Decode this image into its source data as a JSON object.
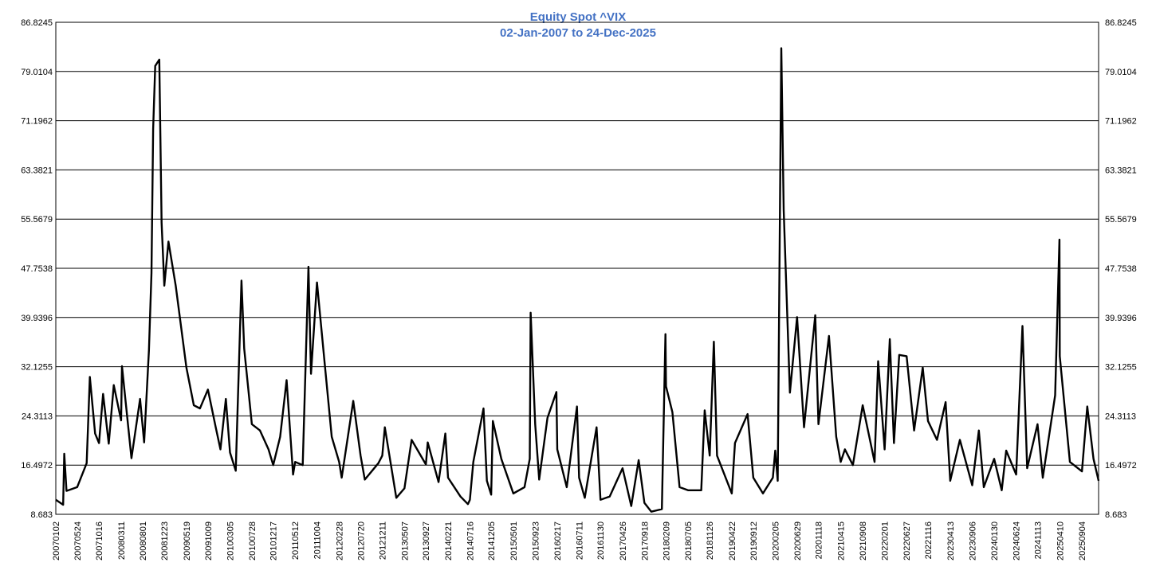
{
  "chart_data": {
    "type": "line",
    "title": "Equity Spot ^VIX",
    "subtitle": "02-Jan-2007 to 24-Dec-2025",
    "xlabel": "",
    "ylabel": "",
    "ylim": [
      8.683,
      86.8245
    ],
    "yticks": [
      "86.8245",
      "79.0104",
      "71.1962",
      "63.3821",
      "55.5679",
      "47.7538",
      "39.9396",
      "32.1255",
      "24.3113",
      "16.4972",
      "8.683"
    ],
    "xtick_labels": [
      "20070102",
      "20070524",
      "20071016",
      "20080311",
      "20080801",
      "20081223",
      "20090519",
      "20091009",
      "20100305",
      "20100728",
      "20101217",
      "20110512",
      "20111004",
      "20120228",
      "20120720",
      "20121211",
      "20130507",
      "20130927",
      "20140221",
      "20140716",
      "20141205",
      "20150501",
      "20150923",
      "20160217",
      "20160711",
      "20161130",
      "20170426",
      "20170918",
      "20180209",
      "20180705",
      "20181126",
      "20190422",
      "20190912",
      "20200205",
      "20200629",
      "20201118",
      "20210415",
      "20210908",
      "20220201",
      "20220627",
      "20221116",
      "20230413",
      "20230906",
      "20240130",
      "20240624",
      "20241113",
      "20250410",
      "20250904"
    ],
    "grid": "horizontal",
    "legend": "none",
    "line_color": "#000000",
    "series": [
      {
        "x": [
          "2007-01-02",
          "2007-02-20",
          "2007-02-27",
          "2007-03-14",
          "2007-05-24",
          "2007-07-26",
          "2007-08-16",
          "2007-09-20",
          "2007-10-16",
          "2007-11-12",
          "2007-12-20",
          "2008-01-22",
          "2008-03-11",
          "2008-03-17",
          "2008-05-19",
          "2008-07-15",
          "2008-08-11",
          "2008-09-12",
          "2008-09-29",
          "2008-10-10",
          "2008-10-24",
          "2008-11-20",
          "2008-12-05",
          "2008-12-23",
          "2009-01-20",
          "2009-03-09",
          "2009-05-19",
          "2009-07-07",
          "2009-08-17",
          "2009-10-09",
          "2009-11-30",
          "2009-12-31",
          "2010-02-05",
          "2010-03-05",
          "2010-04-12",
          "2010-05-20",
          "2010-06-07",
          "2010-07-28",
          "2010-09-20",
          "2010-11-16",
          "2010-12-17",
          "2011-02-01",
          "2011-03-16",
          "2011-04-28",
          "2011-05-12",
          "2011-07-01",
          "2011-08-08",
          "2011-08-25",
          "2011-10-04",
          "2011-11-23",
          "2012-01-10",
          "2012-02-28",
          "2012-03-16",
          "2012-06-01",
          "2012-07-20",
          "2012-08-17",
          "2012-11-15",
          "2012-12-11",
          "2012-12-28",
          "2013-03-14",
          "2013-05-07",
          "2013-06-24",
          "2013-09-27",
          "2013-10-09",
          "2013-12-20",
          "2014-02-03",
          "2014-02-21",
          "2014-05-15",
          "2014-07-03",
          "2014-07-16",
          "2014-08-08",
          "2014-10-15",
          "2014-11-06",
          "2014-12-05",
          "2014-12-16",
          "2015-02-10",
          "2015-05-01",
          "2015-07-14",
          "2015-08-18",
          "2015-08-24",
          "2015-09-23",
          "2015-10-20",
          "2015-12-14",
          "2016-02-11",
          "2016-02-17",
          "2016-04-20",
          "2016-06-27",
          "2016-07-11",
          "2016-08-18",
          "2016-11-04",
          "2016-11-30",
          "2017-01-30",
          "2017-04-26",
          "2017-06-23",
          "2017-08-11",
          "2017-09-18",
          "2017-11-03",
          "2018-01-12",
          "2018-02-05",
          "2018-02-09",
          "2018-03-23",
          "2018-05-10",
          "2018-07-05",
          "2018-10-01",
          "2018-10-24",
          "2018-11-26",
          "2018-12-24",
          "2019-01-14",
          "2019-04-22",
          "2019-05-13",
          "2019-08-05",
          "2019-09-12",
          "2019-11-15",
          "2020-01-20",
          "2020-02-05",
          "2020-02-21",
          "2020-03-16",
          "2020-04-01",
          "2020-05-12",
          "2020-06-29",
          "2020-08-14",
          "2020-10-28",
          "2020-11-18",
          "2021-01-27",
          "2021-03-16",
          "2021-04-15",
          "2021-05-13",
          "2021-07-05",
          "2021-09-08",
          "2021-11-26",
          "2021-12-20",
          "2022-02-01",
          "2022-03-07",
          "2022-04-04",
          "2022-05-09",
          "2022-06-27",
          "2022-08-16",
          "2022-10-12",
          "2022-11-16",
          "2023-01-15",
          "2023-03-13",
          "2023-04-13",
          "2023-06-16",
          "2023-09-06",
          "2023-10-20",
          "2023-11-22",
          "2024-01-30",
          "2024-03-20",
          "2024-04-19",
          "2024-06-24",
          "2024-08-05",
          "2024-09-05",
          "2024-11-13",
          "2024-12-18",
          "2025-03-10",
          "2025-04-08",
          "2025-04-10",
          "2025-06-16",
          "2025-09-04",
          "2025-10-10",
          "2025-11-20",
          "2025-12-24"
        ],
        "y": [
          11.0,
          10.2,
          18.3,
          12.4,
          13.0,
          16.8,
          30.5,
          21.5,
          20.0,
          27.8,
          19.9,
          29.2,
          23.6,
          32.2,
          17.6,
          27.0,
          20.1,
          34.7,
          47.0,
          69.9,
          79.9,
          80.9,
          55.0,
          45.0,
          52.0,
          45.0,
          32.0,
          26.0,
          25.5,
          28.5,
          22.5,
          19.0,
          27.0,
          18.5,
          15.6,
          45.8,
          35.0,
          23.0,
          22.0,
          19.0,
          16.5,
          21.0,
          30.0,
          15.0,
          17.0,
          16.5,
          48.0,
          31.0,
          45.5,
          33.0,
          21.0,
          17.0,
          14.5,
          26.7,
          18.0,
          14.2,
          16.8,
          18.0,
          22.5,
          11.3,
          12.8,
          20.5,
          16.6,
          20.1,
          13.8,
          21.5,
          14.5,
          11.5,
          10.3,
          11.0,
          17.0,
          25.5,
          14.0,
          11.8,
          23.5,
          17.5,
          12.0,
          13.0,
          17.5,
          40.7,
          23.0,
          14.2,
          24.0,
          28.1,
          19.0,
          13.0,
          25.8,
          14.5,
          11.3,
          22.5,
          11.0,
          11.5,
          16.0,
          10.0,
          17.3,
          10.5,
          9.1,
          9.5,
          37.3,
          29.0,
          24.9,
          13.0,
          12.5,
          12.5,
          25.2,
          18.0,
          36.1,
          18.0,
          12.0,
          20.0,
          24.6,
          14.5,
          12.0,
          14.5,
          18.8,
          14.0,
          82.7,
          57.0,
          28.0,
          40.0,
          22.5,
          40.3,
          23.0,
          37.0,
          21.0,
          17.0,
          19.0,
          16.5,
          26.0,
          17.0,
          33.0,
          19.0,
          36.5,
          20.0,
          34.0,
          33.8,
          22.0,
          32.0,
          23.5,
          20.5,
          26.5,
          14.0,
          20.5,
          13.3,
          22.0,
          13.0,
          17.5,
          12.5,
          18.8,
          15.0,
          38.6,
          16.0,
          23.0,
          14.5,
          27.6,
          52.3,
          33.8,
          17.0,
          15.5,
          25.8,
          17.5,
          14.0
        ]
      }
    ]
  }
}
